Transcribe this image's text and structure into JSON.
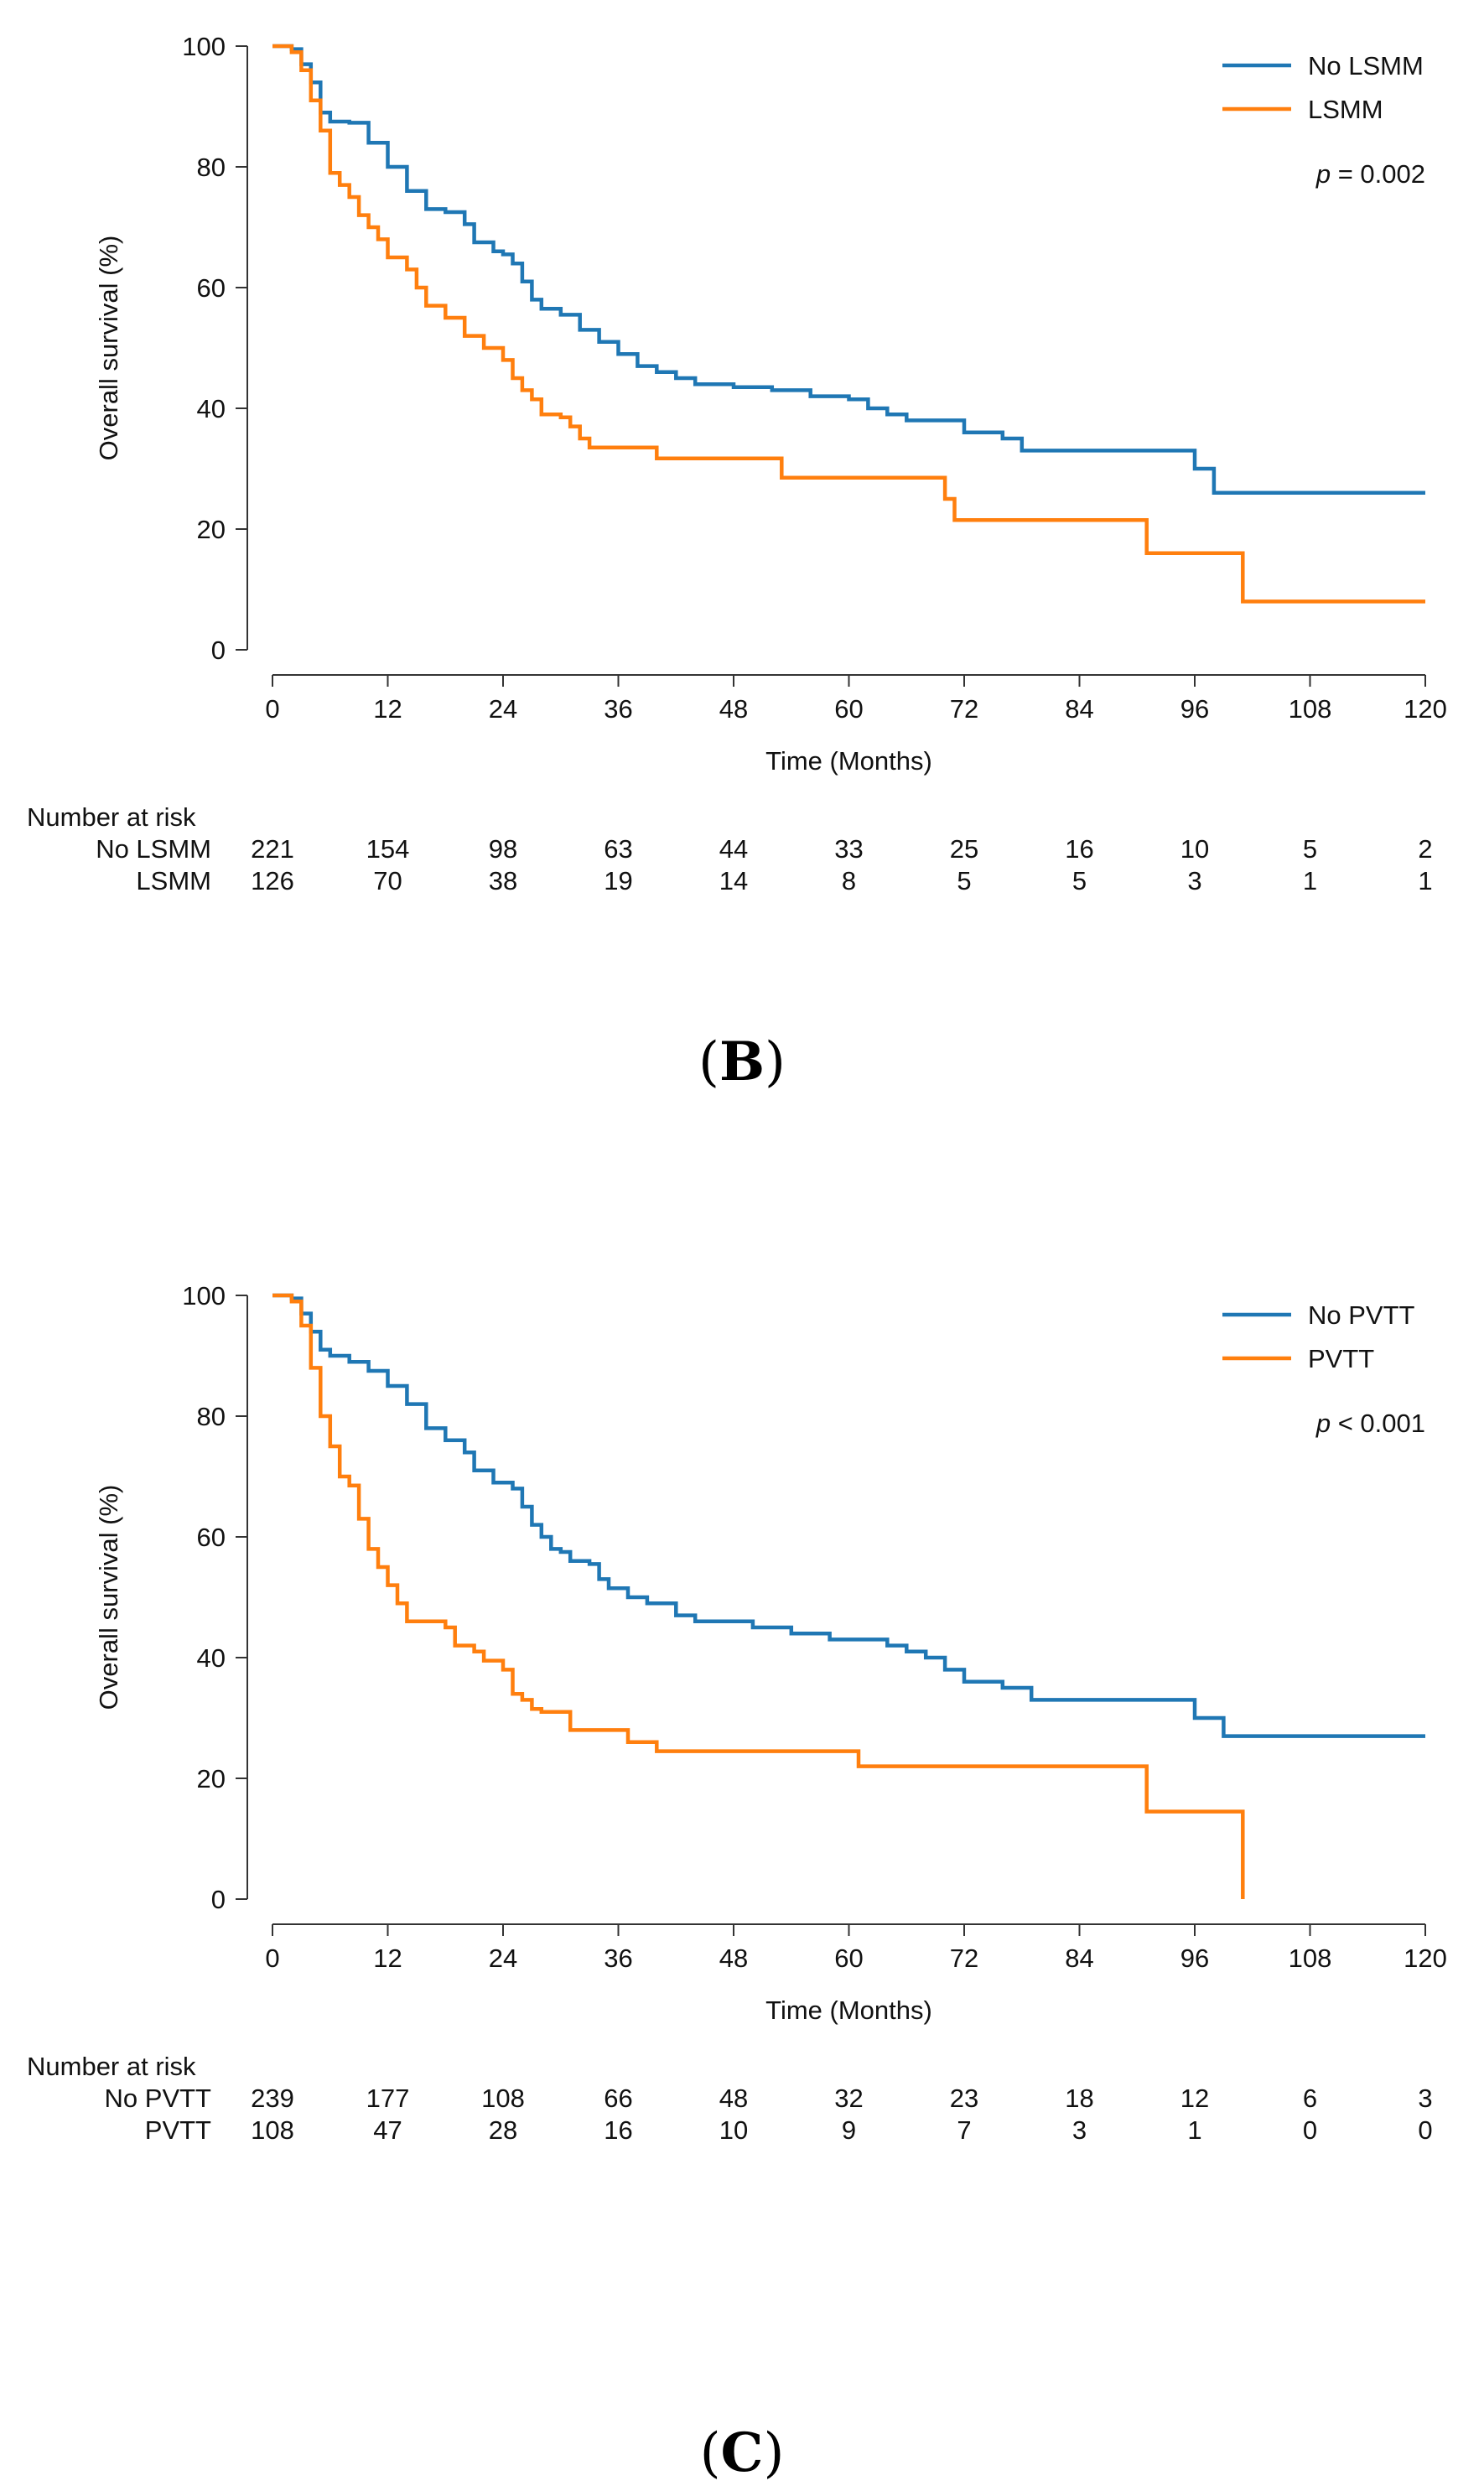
{
  "chart_data": [
    {
      "type": "line",
      "subtype": "kaplan-meier",
      "panel_label": "(B)",
      "panel_label_parts": [
        "(",
        "B",
        ")"
      ],
      "xlabel": "Time (Months)",
      "ylabel": "Overall survival (%)",
      "xlim": [
        0,
        120
      ],
      "ylim": [
        0,
        100
      ],
      "xticks": [
        0,
        12,
        24,
        36,
        48,
        60,
        72,
        84,
        96,
        108,
        120
      ],
      "yticks": [
        0,
        20,
        40,
        60,
        80,
        100
      ],
      "p_label": "p",
      "p_rest": " = 0.002",
      "legend_position": "top-right",
      "series": [
        {
          "name": "No LSMM",
          "color": "#1f77b4",
          "points": [
            [
              0,
              100
            ],
            [
              2,
              99.5
            ],
            [
              3,
              97
            ],
            [
              4,
              94
            ],
            [
              5,
              89
            ],
            [
              6,
              87.5
            ],
            [
              8,
              87.3
            ],
            [
              10,
              84
            ],
            [
              12,
              80
            ],
            [
              14,
              76
            ],
            [
              16,
              73
            ],
            [
              18,
              72.5
            ],
            [
              20,
              70.5
            ],
            [
              21,
              67.5
            ],
            [
              23,
              66
            ],
            [
              24,
              65.5
            ],
            [
              25,
              64
            ],
            [
              26,
              61
            ],
            [
              27,
              58
            ],
            [
              28,
              56.5
            ],
            [
              30,
              55.5
            ],
            [
              32,
              53
            ],
            [
              34,
              51
            ],
            [
              36,
              49
            ],
            [
              38,
              47
            ],
            [
              40,
              46
            ],
            [
              42,
              45
            ],
            [
              44,
              44
            ],
            [
              48,
              43.5
            ],
            [
              52,
              43
            ],
            [
              56,
              42
            ],
            [
              60,
              41.5
            ],
            [
              62,
              40
            ],
            [
              64,
              39
            ],
            [
              66,
              38
            ],
            [
              72,
              36
            ],
            [
              76,
              35
            ],
            [
              78,
              33
            ],
            [
              96,
              30
            ],
            [
              98,
              26
            ],
            [
              120,
              26
            ]
          ]
        },
        {
          "name": "LSMM",
          "color": "#ff7f0e",
          "points": [
            [
              0,
              100
            ],
            [
              2,
              99
            ],
            [
              3,
              96
            ],
            [
              4,
              91
            ],
            [
              5,
              86
            ],
            [
              6,
              79
            ],
            [
              7,
              77
            ],
            [
              8,
              75
            ],
            [
              9,
              72
            ],
            [
              10,
              70
            ],
            [
              11,
              68
            ],
            [
              12,
              65
            ],
            [
              14,
              63
            ],
            [
              15,
              60
            ],
            [
              16,
              57
            ],
            [
              18,
              55
            ],
            [
              20,
              52
            ],
            [
              22,
              50
            ],
            [
              24,
              48
            ],
            [
              25,
              45
            ],
            [
              26,
              43
            ],
            [
              27,
              41.5
            ],
            [
              28,
              39
            ],
            [
              30,
              38.5
            ],
            [
              31,
              37
            ],
            [
              32,
              35
            ],
            [
              33,
              33.5
            ],
            [
              40,
              31.7
            ],
            [
              53,
              28.5
            ],
            [
              70,
              25
            ],
            [
              71,
              21.5
            ],
            [
              91,
              16
            ],
            [
              101,
              8
            ],
            [
              120,
              8
            ]
          ]
        }
      ],
      "risk_table": {
        "title": "Number at risk",
        "times": [
          0,
          12,
          24,
          36,
          48,
          60,
          72,
          84,
          96,
          108,
          120
        ],
        "rows": [
          {
            "label": "No LSMM",
            "values": [
              221,
              154,
              98,
              63,
              44,
              33,
              25,
              16,
              10,
              5,
              2
            ]
          },
          {
            "label": "LSMM",
            "values": [
              126,
              70,
              38,
              19,
              14,
              8,
              5,
              5,
              3,
              1,
              1
            ]
          }
        ]
      }
    },
    {
      "type": "line",
      "subtype": "kaplan-meier",
      "panel_label": "(C)",
      "panel_label_parts": [
        "(",
        "C",
        ")"
      ],
      "xlabel": "Time (Months)",
      "ylabel": "Overall survival (%)",
      "xlim": [
        0,
        120
      ],
      "ylim": [
        0,
        100
      ],
      "xticks": [
        0,
        12,
        24,
        36,
        48,
        60,
        72,
        84,
        96,
        108,
        120
      ],
      "yticks": [
        0,
        20,
        40,
        60,
        80,
        100
      ],
      "p_label": "p",
      "p_rest": " < 0.001",
      "legend_position": "top-right",
      "series": [
        {
          "name": "No PVTT",
          "color": "#1f77b4",
          "points": [
            [
              0,
              100
            ],
            [
              2,
              99.5
            ],
            [
              3,
              97
            ],
            [
              4,
              94
            ],
            [
              5,
              91
            ],
            [
              6,
              90
            ],
            [
              8,
              89
            ],
            [
              10,
              87.5
            ],
            [
              12,
              85
            ],
            [
              14,
              82
            ],
            [
              16,
              78
            ],
            [
              18,
              76
            ],
            [
              20,
              74
            ],
            [
              21,
              71
            ],
            [
              23,
              69
            ],
            [
              25,
              68
            ],
            [
              26,
              65
            ],
            [
              27,
              62
            ],
            [
              28,
              60
            ],
            [
              29,
              58
            ],
            [
              30,
              57.5
            ],
            [
              31,
              56
            ],
            [
              33,
              55.5
            ],
            [
              34,
              53
            ],
            [
              35,
              51.5
            ],
            [
              37,
              50
            ],
            [
              39,
              49
            ],
            [
              42,
              47
            ],
            [
              44,
              46
            ],
            [
              50,
              45
            ],
            [
              54,
              44
            ],
            [
              58,
              43
            ],
            [
              64,
              42
            ],
            [
              66,
              41
            ],
            [
              68,
              40
            ],
            [
              70,
              38
            ],
            [
              72,
              36
            ],
            [
              76,
              35
            ],
            [
              79,
              33
            ],
            [
              96,
              30
            ],
            [
              99,
              27
            ],
            [
              120,
              27
            ]
          ]
        },
        {
          "name": "PVTT",
          "color": "#ff7f0e",
          "points": [
            [
              0,
              100
            ],
            [
              2,
              99
            ],
            [
              3,
              95
            ],
            [
              4,
              88
            ],
            [
              5,
              80
            ],
            [
              6,
              75
            ],
            [
              7,
              70
            ],
            [
              8,
              68.5
            ],
            [
              9,
              63
            ],
            [
              10,
              58
            ],
            [
              11,
              55
            ],
            [
              12,
              52
            ],
            [
              13,
              49
            ],
            [
              14,
              46
            ],
            [
              18,
              45
            ],
            [
              19,
              42
            ],
            [
              21,
              41
            ],
            [
              22,
              39.5
            ],
            [
              24,
              38
            ],
            [
              25,
              34
            ],
            [
              26,
              33
            ],
            [
              27,
              31.5
            ],
            [
              28,
              31
            ],
            [
              31,
              28
            ],
            [
              37,
              26
            ],
            [
              40,
              24.5
            ],
            [
              61,
              22
            ],
            [
              91,
              14.5
            ],
            [
              101,
              0
            ]
          ]
        }
      ],
      "risk_table": {
        "title": "Number at risk",
        "times": [
          0,
          12,
          24,
          36,
          48,
          60,
          72,
          84,
          96,
          108,
          120
        ],
        "rows": [
          {
            "label": "No PVTT",
            "values": [
              239,
              177,
              108,
              66,
              48,
              32,
              23,
              18,
              12,
              6,
              3
            ]
          },
          {
            "label": "PVTT",
            "values": [
              108,
              47,
              28,
              16,
              10,
              9,
              7,
              3,
              1,
              0,
              0
            ]
          }
        ]
      }
    }
  ]
}
